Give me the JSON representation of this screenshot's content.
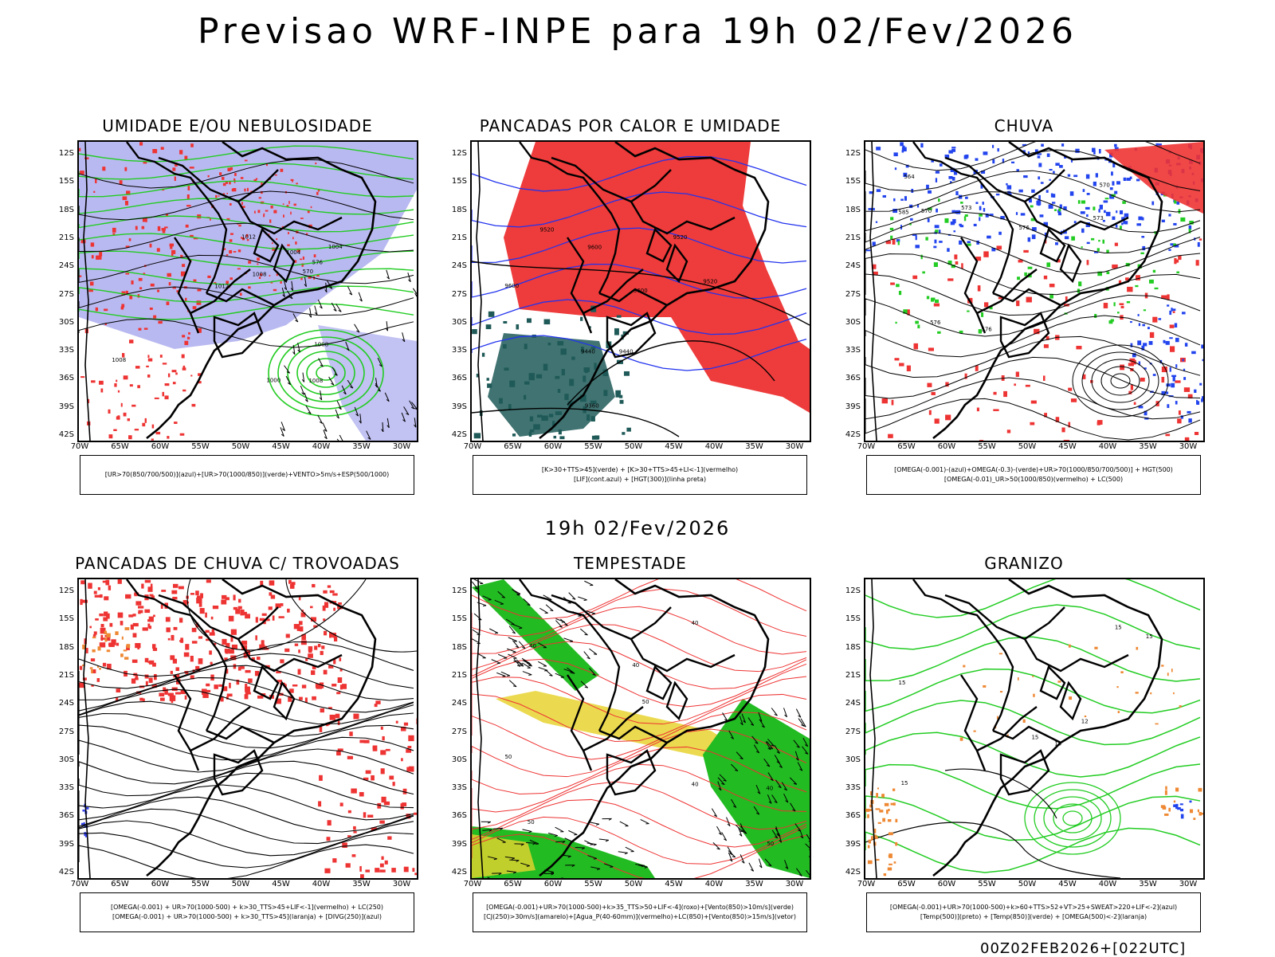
{
  "main_title": "Previsao WRF-INPE  para 19h 02/Fev/2026",
  "mid_time": "19h 02/Fev/2026",
  "footer": "00Z02FEB2026+[022UTC]",
  "lat_labels": [
    "12S",
    "15S",
    "18S",
    "21S",
    "24S",
    "27S",
    "30S",
    "33S",
    "36S",
    "39S",
    "42S"
  ],
  "lon_labels": [
    "70W",
    "65W",
    "60W",
    "55W",
    "50W",
    "45W",
    "40W",
    "35W",
    "30W"
  ],
  "panels": [
    {
      "title": "UMIDADE E/OU NEBULOSIDADE",
      "legend_lines": [
        "[UR>70(850/700/500)](azul)+[UR>70(1000/850)](verde)+VENTO>5m/s+ESP(500/1000)"
      ],
      "contour_labels": [
        "1008",
        "1004",
        "1012",
        "1008",
        "1004",
        "1008",
        "1012",
        "1008",
        "1000",
        "570",
        "576"
      ],
      "colors": {
        "fill": "#a8a8ee",
        "line1": "#22cc22",
        "line2": "#ee3333",
        "line3": "#000000"
      }
    },
    {
      "title": "PANCADAS POR CALOR E UMIDADE",
      "legend_lines": [
        "[K>30+TTS>45](verde) + [K>30+TTS>45+LI<-1](vermelho)",
        "[LIF](cont.azul) + [HGT(300)](linha preta)"
      ],
      "contour_labels": [
        "9600",
        "9520",
        "9600",
        "9520",
        "9600",
        "9520",
        "9440",
        "9440",
        "9360"
      ],
      "colors": {
        "fill": "#ee3b3b",
        "fill2": "#1f5a58",
        "line1": "#2233ee",
        "line2": "#000000"
      }
    },
    {
      "title": "CHUVA",
      "legend_lines": [
        "[OMEGA(-0.001)-(azul)+OMEGA(-0.3)-(verde)+UR>70(1000/850/700/500)] + HGT(500)",
        "[OMEGA(-0.01)_UR>50(1000/850)(vermelho) + LC(500)"
      ],
      "contour_labels": [
        "585",
        "576",
        "573",
        "570",
        "576",
        "573",
        "570",
        "576",
        "564"
      ],
      "colors": {
        "fill": "#ee3333",
        "fill2": "#2244ee",
        "fill3": "#22cc22",
        "line1": "#000000"
      }
    },
    {
      "title": "PANCADAS DE CHUVA C/ TROVOADAS",
      "legend_lines": [
        "[OMEGA(-0.001) + UR>70(1000-500) + k>30_TTS>45+LIF<-1](vermelho) + LC(250)",
        "[OMEGA(-0.001) + UR>70(1000-500) + k>30_TTS>45](laranja) + [DIVG(250)](azul)"
      ],
      "contour_labels": [],
      "colors": {
        "fill": "#ee3333",
        "fill2": "#ee8833",
        "line1": "#000000"
      }
    },
    {
      "title": "TEMPESTADE",
      "legend_lines": [
        "[OMEGA(-0.001)+UR>70(1000-500)+k>35_TTS>50+LIF<-4](roxo)+[Vento(850)>10m/s](verde)",
        "[CJ(250)>30m/s](amarelo)+[Agua_P(40-60mm)](vermelho)+LC(850)+[Vento(850)>15m/s](vetor)"
      ],
      "contour_labels": [
        "50",
        "40",
        "50",
        "40",
        "50",
        "40",
        "40",
        "50",
        "40"
      ],
      "colors": {
        "fill": "#22bb22",
        "fill2": "#e8d430",
        "line1": "#ee3333",
        "line2": "#000000"
      }
    },
    {
      "title": "GRANIZO",
      "legend_lines": [
        "[OMEGA(-0.001)+UR>70(1000-500)+k>60+TTS>52+VT>25+SWEAT>220+LIF<-2](azul)",
        "[Temp(500)](preto) + [Temp(850)](verde) + [OMEGA(500)<-2](laranja)"
      ],
      "contour_labels": [
        "15",
        "15",
        "15",
        "15",
        "15",
        "12",
        "15"
      ],
      "colors": {
        "line1": "#22cc22",
        "fill": "#ee8833",
        "fill2": "#2244ee",
        "line2": "#000000"
      }
    }
  ]
}
